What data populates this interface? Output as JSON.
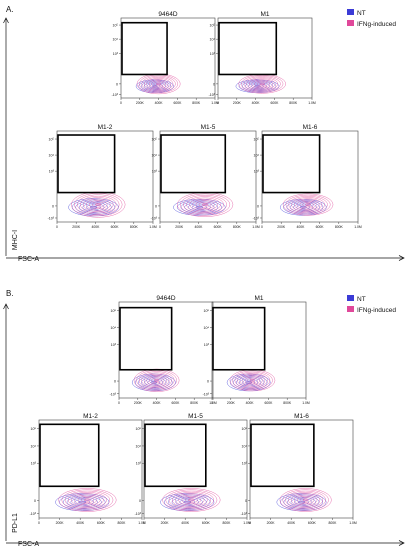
{
  "colors": {
    "nt": "#3b3bd6",
    "ifng": "#e0489a",
    "gate": "#000000",
    "axis": "#111111"
  },
  "chart_data": {
    "type": "contour",
    "panels": [
      {
        "label": "A.",
        "x_axis": "FSC-A",
        "y_axis": "MHC-I",
        "legend": [
          {
            "name": "NT",
            "color": "#3b3bd6"
          },
          {
            "name": "IFNg-induced",
            "color": "#e0489a"
          }
        ],
        "x_ticks": [
          "0",
          "200K",
          "400K",
          "600K",
          "800K",
          "1.0M"
        ],
        "y_ticks": [
          "-10³",
          "0",
          "10³",
          "10⁴",
          "10⁵"
        ],
        "plots": [
          {
            "title": "9464D",
            "gate": {
              "x": [
                0,
                490000
              ],
              "y": [
                0.8,
                5.2
              ]
            },
            "nt": {
              "cx": 360000,
              "cy": -0.2,
              "rx": 200000,
              "ry": 0.55
            },
            "ifng": {
              "cx": 400000,
              "cy": 0.0,
              "rx": 230000,
              "ry": 0.85
            }
          },
          {
            "title": "M1",
            "gate": {
              "x": [
                0,
                620000
              ],
              "y": [
                0.8,
                5.2
              ]
            },
            "nt": {
              "cx": 420000,
              "cy": -0.2,
              "rx": 230000,
              "ry": 0.55
            },
            "ifng": {
              "cx": 470000,
              "cy": 0.0,
              "rx": 250000,
              "ry": 0.8
            }
          },
          {
            "title": "M1-2",
            "gate": {
              "x": [
                0,
                600000
              ],
              "y": [
                1.0,
                5.3
              ]
            },
            "nt": {
              "cx": 380000,
              "cy": -0.1,
              "rx": 260000,
              "ry": 0.65
            },
            "ifng": {
              "cx": 430000,
              "cy": 0.1,
              "rx": 280000,
              "ry": 0.95
            }
          },
          {
            "title": "M1-5",
            "gate": {
              "x": [
                0,
                680000
              ],
              "y": [
                1.0,
                5.3
              ]
            },
            "nt": {
              "cx": 410000,
              "cy": -0.1,
              "rx": 270000,
              "ry": 0.6
            },
            "ifng": {
              "cx": 470000,
              "cy": 0.1,
              "rx": 290000,
              "ry": 0.9
            }
          },
          {
            "title": "M1-6",
            "gate": {
              "x": [
                0,
                600000
              ],
              "y": [
                1.0,
                5.3
              ]
            },
            "nt": {
              "cx": 430000,
              "cy": -0.1,
              "rx": 240000,
              "ry": 0.6
            },
            "ifng": {
              "cx": 480000,
              "cy": 0.1,
              "rx": 260000,
              "ry": 0.8
            }
          }
        ]
      },
      {
        "label": "B.",
        "x_axis": "FSC-A",
        "y_axis": "PD-L1",
        "legend": [
          {
            "name": "NT",
            "color": "#3b3bd6"
          },
          {
            "name": "IFNg-induced",
            "color": "#e0489a"
          }
        ],
        "x_ticks": [
          "0",
          "200K",
          "400K",
          "600K",
          "800K",
          "1.0M"
        ],
        "y_ticks": [
          "-10³",
          "0",
          "10³",
          "10⁴",
          "10⁵"
        ],
        "plots": [
          {
            "title": "9464D",
            "gate": {
              "x": [
                0,
                560000
              ],
              "y": [
                0.8,
                5.2
              ]
            },
            "nt": {
              "cx": 370000,
              "cy": -0.1,
              "rx": 230000,
              "ry": 0.6
            },
            "ifng": {
              "cx": 400000,
              "cy": 0.05,
              "rx": 240000,
              "ry": 0.8
            }
          },
          {
            "title": "M1",
            "gate": {
              "x": [
                0,
                560000
              ],
              "y": [
                0.8,
                5.2
              ]
            },
            "nt": {
              "cx": 390000,
              "cy": -0.1,
              "rx": 230000,
              "ry": 0.6
            },
            "ifng": {
              "cx": 430000,
              "cy": 0.05,
              "rx": 240000,
              "ry": 0.75
            }
          },
          {
            "title": "M1-2",
            "gate": {
              "x": [
                0,
                580000
              ],
              "y": [
                1.0,
                5.3
              ]
            },
            "nt": {
              "cx": 420000,
              "cy": -0.1,
              "rx": 260000,
              "ry": 0.6
            },
            "ifng": {
              "cx": 470000,
              "cy": 0.05,
              "rx": 280000,
              "ry": 0.8
            }
          },
          {
            "title": "M1-5",
            "gate": {
              "x": [
                0,
                600000
              ],
              "y": [
                1.0,
                5.3
              ]
            },
            "nt": {
              "cx": 420000,
              "cy": -0.1,
              "rx": 260000,
              "ry": 0.6
            },
            "ifng": {
              "cx": 460000,
              "cy": 0.05,
              "rx": 280000,
              "ry": 0.8
            }
          },
          {
            "title": "M1-6",
            "gate": {
              "x": [
                0,
                620000
              ],
              "y": [
                1.0,
                5.3
              ]
            },
            "nt": {
              "cx": 500000,
              "cy": -0.1,
              "rx": 240000,
              "ry": 0.6
            },
            "ifng": {
              "cx": 540000,
              "cy": 0.05,
              "rx": 250000,
              "ry": 0.8
            }
          }
        ]
      }
    ]
  }
}
